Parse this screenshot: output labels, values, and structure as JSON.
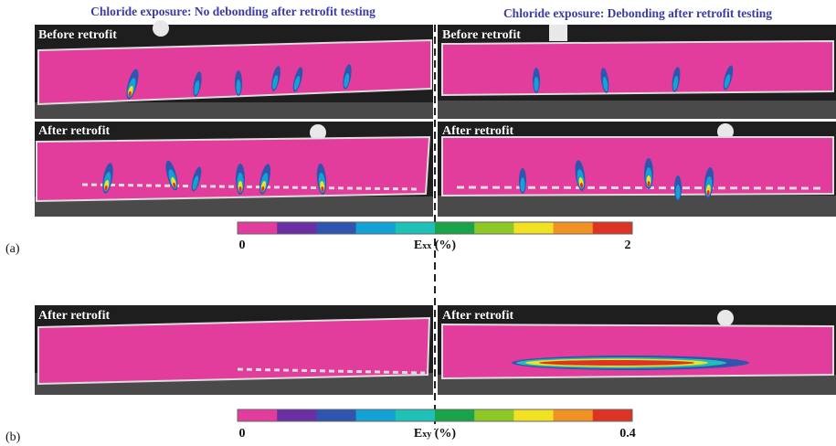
{
  "header": {
    "left_title": "Chloride exposure: No debonding after retrofit testing",
    "right_title": "Chloride exposure: Debonding after retrofit testing"
  },
  "panel_a": {
    "tag": "(a)",
    "top_left_label": "Before retrofit",
    "top_right_label": "Before retrofit",
    "bottom_left_label": "After retrofit",
    "bottom_right_label": "After retrofit",
    "colorbar": {
      "min": "0",
      "max": "2",
      "symbol": "E",
      "subscript": "xx",
      "unit": "(%)"
    }
  },
  "panel_b": {
    "tag": "(b)",
    "left_label": "After retrofit",
    "right_label": "After retrofit",
    "colorbar": {
      "min": "0",
      "max": "0.4",
      "symbol": "E",
      "subscript": "xy",
      "unit": "(%)"
    }
  },
  "colors": [
    "#e23d9c",
    "#6a2fa3",
    "#2f55b0",
    "#14a2d6",
    "#1fc0b5",
    "#19a44a",
    "#8cc826",
    "#f1e122",
    "#f19122",
    "#dd3322"
  ]
}
